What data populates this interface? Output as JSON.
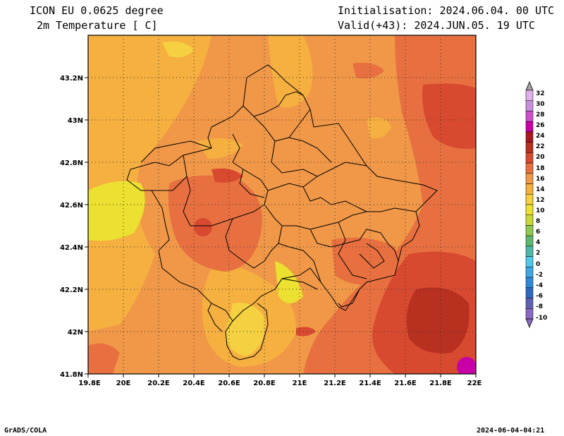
{
  "header": {
    "model": "ICON EU 0.0625 degree",
    "variable": "2m Temperature [ C]",
    "init": "Initialisation: 2024.06.04. 00 UTC",
    "valid": "Valid(+43): 2024.JUN.05. 19 UTC"
  },
  "axes": {
    "lon_ticks": [
      "19.8E",
      "20E",
      "20.2E",
      "20.4E",
      "20.6E",
      "20.8E",
      "21E",
      "21.2E",
      "21.4E",
      "21.6E",
      "21.8E",
      "22E"
    ],
    "lat_ticks": [
      "43.2N",
      "43N",
      "42.8N",
      "42.6N",
      "42.4N",
      "42.2N",
      "42N",
      "41.8N"
    ]
  },
  "legend": {
    "labels": [
      "32",
      "30",
      "28",
      "26",
      "24",
      "22",
      "20",
      "18",
      "16",
      "14",
      "12",
      "10",
      "8",
      "6",
      "4",
      "2",
      "0",
      "-2",
      "-4",
      "-6",
      "-8",
      "-10"
    ],
    "colors": [
      "#e0b0e8",
      "#c890dc",
      "#d050c8",
      "#c800a8",
      "#a81820",
      "#b83020",
      "#d84a30",
      "#e87040",
      "#f09848",
      "#f5b040",
      "#f5d040",
      "#ece030",
      "#c8d838",
      "#90c850",
      "#60b870",
      "#50b8a8",
      "#50c8e8",
      "#40a8e0",
      "#3088d8",
      "#3068c0",
      "#6060b0",
      "#8868c0"
    ]
  },
  "footer": {
    "left": "GrADS/COLA",
    "right": "2024-06-04-04:21"
  }
}
